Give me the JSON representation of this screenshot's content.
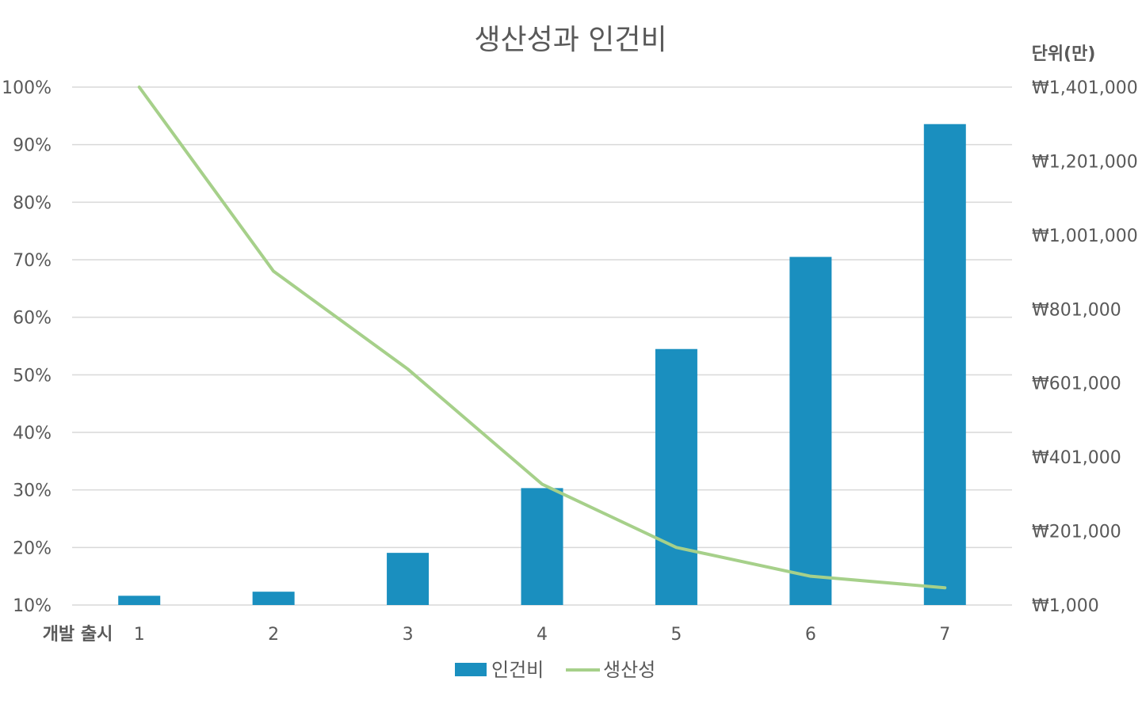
{
  "chart_data": {
    "type": "bar",
    "title": "생산성과 인건비",
    "xlabel": "개발 출시",
    "categories": [
      "1",
      "2",
      "3",
      "4",
      "5",
      "6",
      "7"
    ],
    "series": [
      {
        "name": "인건비",
        "type": "bar",
        "axis": "right",
        "color": "#1a8fbf",
        "values": [
          26000,
          37000,
          142000,
          317000,
          693000,
          942000,
          1301000
        ]
      },
      {
        "name": "생산성",
        "type": "line",
        "axis": "left",
        "color": "#a6d08a",
        "values": [
          100,
          68,
          51,
          31,
          20,
          15,
          13
        ]
      }
    ],
    "y_left": {
      "ylim": [
        10,
        100
      ],
      "ticks": [
        10,
        20,
        30,
        40,
        50,
        60,
        70,
        80,
        90,
        100
      ],
      "tick_labels": [
        "10%",
        "20%",
        "30%",
        "40%",
        "50%",
        "60%",
        "70%",
        "80%",
        "90%",
        "100%"
      ]
    },
    "y_right": {
      "unit_label": "단위(만)",
      "ylim": [
        1000,
        1401000
      ],
      "ticks": [
        1000,
        201000,
        401000,
        601000,
        801000,
        1001000,
        1201000,
        1401000
      ],
      "tick_labels": [
        "₩1,000",
        "₩201,000",
        "₩401,000",
        "₩601,000",
        "₩801,000",
        "₩1,001,000",
        "₩1,201,000",
        "₩1,401,000"
      ]
    },
    "grid": true,
    "legend_position": "bottom"
  }
}
